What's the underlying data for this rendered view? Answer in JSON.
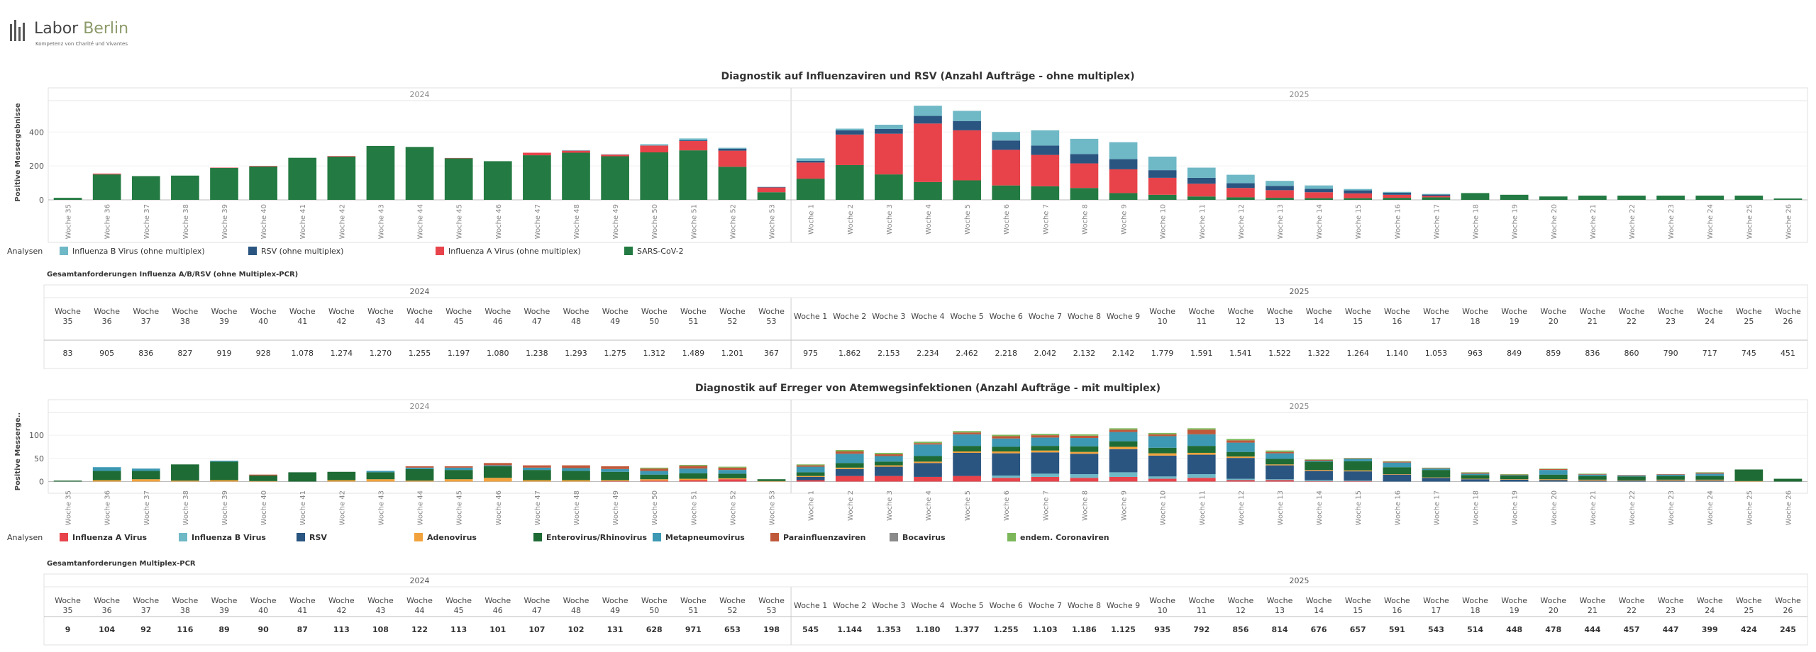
{
  "logo": {
    "name1": "Labor",
    "name2": "Berlin",
    "tagline": "Kompetenz von Charité und Vivantes"
  },
  "weeks": [
    "Woche 35",
    "Woche 36",
    "Woche 37",
    "Woche 38",
    "Woche 39",
    "Woche 40",
    "Woche 41",
    "Woche 42",
    "Woche 43",
    "Woche 44",
    "Woche 45",
    "Woche 46",
    "Woche 47",
    "Woche 48",
    "Woche 49",
    "Woche 50",
    "Woche 51",
    "Woche 52",
    "Woche 53",
    "Woche 1",
    "Woche 2",
    "Woche 3",
    "Woche 4",
    "Woche 5",
    "Woche 6",
    "Woche 7",
    "Woche 8",
    "Woche 9",
    "Woche 10",
    "Woche 11",
    "Woche 12",
    "Woche 13",
    "Woche 14",
    "Woche 15",
    "Woche 16",
    "Woche 17",
    "Woche 18",
    "Woche 19",
    "Woche 20",
    "Woche 21",
    "Woche 22",
    "Woche 23",
    "Woche 24",
    "Woche 25",
    "Woche 26"
  ],
  "years": [
    "2024",
    "2025"
  ],
  "legend_label": "Analysen",
  "colors": {
    "fluB": "#6fb8c6",
    "rsv": "#2a5581",
    "fluA": "#e8434a",
    "sars": "#237a42",
    "adeno": "#f2a23c",
    "entero": "#1e6b35",
    "meta": "#3c98b3",
    "para": "#c0583a",
    "boca": "#8a8a8a",
    "corona": "#7cb85a"
  },
  "chart_data": [
    {
      "type": "bar",
      "stacked": true,
      "title": "Diagnostik auf Influenzaviren und RSV (Anzahl Aufträge - ohne multiplex)",
      "ylabel": "Positive Messergebnisse",
      "ylim": [
        0,
        560
      ],
      "yticks": [
        0,
        200,
        400
      ],
      "series": [
        {
          "name": "SARS-CoV-2",
          "key": "sars",
          "values": [
            12,
            150,
            140,
            143,
            188,
            197,
            248,
            255,
            318,
            312,
            245,
            228,
            263,
            278,
            257,
            280,
            292,
            195,
            45,
            125,
            205,
            150,
            105,
            115,
            85,
            80,
            70,
            40,
            30,
            20,
            15,
            12,
            10,
            10,
            12,
            15,
            40,
            30,
            20,
            25,
            25,
            25,
            25,
            25,
            8
          ]
        },
        {
          "name": "Influenza A Virus (ohne multiplex)",
          "key": "fluA",
          "values": [
            0,
            5,
            0,
            0,
            2,
            3,
            0,
            3,
            0,
            0,
            2,
            0,
            15,
            12,
            10,
            40,
            55,
            95,
            28,
            95,
            180,
            240,
            345,
            295,
            210,
            185,
            145,
            140,
            100,
            75,
            55,
            45,
            35,
            28,
            18,
            8,
            0,
            0,
            0,
            0,
            0,
            0,
            0,
            0,
            0
          ]
        },
        {
          "name": "RSV (ohne multiplex)",
          "key": "rsv",
          "values": [
            0,
            0,
            0,
            0,
            0,
            0,
            0,
            0,
            0,
            0,
            0,
            0,
            0,
            0,
            0,
            0,
            5,
            12,
            2,
            10,
            25,
            28,
            45,
            55,
            55,
            55,
            55,
            60,
            45,
            35,
            28,
            25,
            20,
            18,
            12,
            8,
            0,
            0,
            0,
            0,
            0,
            0,
            0,
            0,
            0
          ]
        },
        {
          "name": "Influenza B Virus (ohne multiplex)",
          "key": "fluB",
          "values": [
            0,
            0,
            0,
            0,
            0,
            0,
            0,
            0,
            0,
            0,
            0,
            0,
            0,
            3,
            2,
            8,
            10,
            5,
            2,
            15,
            10,
            25,
            60,
            60,
            50,
            90,
            90,
            100,
            80,
            60,
            50,
            30,
            20,
            8,
            5,
            4,
            0,
            0,
            0,
            0,
            0,
            0,
            0,
            0,
            0
          ]
        }
      ]
    },
    {
      "type": "table",
      "title": "Gesamtanforderungen Influenza A/B/RSV (ohne Multiplex-PCR)",
      "values": [
        "83",
        "905",
        "836",
        "827",
        "919",
        "928",
        "1.078",
        "1.274",
        "1.270",
        "1.255",
        "1.197",
        "1.080",
        "1.238",
        "1.293",
        "1.275",
        "1.312",
        "1.489",
        "1.201",
        "367",
        "975",
        "1.862",
        "2.153",
        "2.234",
        "2.462",
        "2.218",
        "2.042",
        "2.132",
        "2.142",
        "1.779",
        "1.591",
        "1.541",
        "1.522",
        "1.322",
        "1.264",
        "1.140",
        "1.053",
        "963",
        "849",
        "859",
        "836",
        "860",
        "790",
        "717",
        "745",
        "451"
      ]
    },
    {
      "type": "bar",
      "stacked": true,
      "title": "Diagnostik auf Erreger von Atemwegsinfektionen (Anzahl Aufträge - mit multiplex)",
      "ylabel": "Positive Messerge..",
      "ylim": [
        -10,
        140
      ],
      "yticks": [
        0,
        50,
        100
      ],
      "series": [
        {
          "name": "Influenza A Virus",
          "key": "fluA",
          "values": [
            0,
            0,
            0,
            0,
            0,
            0,
            0,
            0,
            0,
            0,
            0,
            0,
            0,
            0,
            1,
            2,
            3,
            5,
            0,
            3,
            12,
            12,
            10,
            12,
            8,
            10,
            8,
            10,
            6,
            8,
            3,
            3,
            1,
            1,
            0,
            0,
            0,
            0,
            0,
            0,
            0,
            0,
            0,
            0,
            0
          ]
        },
        {
          "name": "Influenza B Virus",
          "key": "fluB",
          "values": [
            0,
            0,
            0,
            0,
            0,
            0,
            0,
            0,
            0,
            0,
            0,
            0,
            0,
            0,
            0,
            0,
            0,
            0,
            0,
            0,
            0,
            0,
            0,
            0,
            5,
            7,
            8,
            10,
            5,
            8,
            3,
            2,
            2,
            1,
            0,
            0,
            0,
            0,
            0,
            0,
            0,
            0,
            0,
            0,
            0
          ]
        },
        {
          "name": "RSV",
          "key": "rsv",
          "values": [
            0,
            0,
            0,
            0,
            0,
            0,
            0,
            0,
            0,
            0,
            0,
            0,
            0,
            0,
            0,
            0,
            0,
            0,
            0,
            7,
            15,
            20,
            30,
            50,
            48,
            46,
            44,
            50,
            45,
            42,
            45,
            30,
            20,
            20,
            15,
            8,
            5,
            4,
            3,
            2,
            2,
            2,
            2,
            0,
            0
          ]
        },
        {
          "name": "Adenovirus",
          "key": "adeno",
          "values": [
            0,
            3,
            5,
            2,
            3,
            1,
            0,
            3,
            5,
            2,
            5,
            8,
            3,
            3,
            2,
            3,
            3,
            2,
            1,
            2,
            3,
            3,
            3,
            3,
            4,
            4,
            4,
            5,
            5,
            4,
            3,
            2,
            2,
            2,
            1,
            1,
            1,
            1,
            2,
            2,
            1,
            2,
            2,
            1,
            0
          ]
        },
        {
          "name": "Enterovirus/Rhinovirus",
          "key": "entero",
          "values": [
            2,
            20,
            18,
            35,
            40,
            12,
            20,
            18,
            15,
            25,
            20,
            25,
            22,
            20,
            18,
            10,
            12,
            10,
            4,
            8,
            10,
            8,
            12,
            12,
            10,
            10,
            12,
            12,
            12,
            15,
            10,
            12,
            18,
            20,
            15,
            16,
            8,
            8,
            10,
            8,
            8,
            8,
            8,
            25,
            6
          ]
        },
        {
          "name": "Metapneumovirus",
          "key": "meta",
          "values": [
            0,
            8,
            5,
            0,
            2,
            0,
            0,
            0,
            3,
            3,
            5,
            2,
            5,
            6,
            6,
            8,
            10,
            8,
            0,
            12,
            20,
            12,
            25,
            25,
            18,
            18,
            18,
            20,
            25,
            25,
            20,
            12,
            2,
            5,
            10,
            3,
            3,
            1,
            10,
            3,
            2,
            3,
            5,
            0,
            0
          ]
        },
        {
          "name": "Parainfluenzaviren",
          "key": "para",
          "values": [
            0,
            0,
            0,
            0,
            0,
            2,
            0,
            0,
            0,
            3,
            3,
            5,
            5,
            6,
            6,
            5,
            6,
            5,
            0,
            3,
            5,
            4,
            3,
            4,
            5,
            5,
            5,
            5,
            4,
            10,
            5,
            3,
            2,
            1,
            2,
            1,
            2,
            1,
            2,
            1,
            1,
            1,
            2,
            0,
            0
          ]
        },
        {
          "name": "Bocavirus",
          "key": "boca",
          "values": [
            0,
            0,
            0,
            0,
            0,
            0,
            0,
            0,
            0,
            0,
            0,
            0,
            0,
            0,
            0,
            0,
            0,
            0,
            0,
            0,
            0,
            0,
            0,
            0,
            0,
            0,
            0,
            0,
            0,
            0,
            0,
            0,
            0,
            0,
            0,
            0,
            0,
            0,
            0,
            0,
            0,
            0,
            0,
            0,
            0
          ]
        },
        {
          "name": "endem. Coronaviren",
          "key": "corona",
          "values": [
            0,
            0,
            0,
            0,
            0,
            0,
            0,
            0,
            0,
            0,
            0,
            0,
            0,
            0,
            0,
            2,
            2,
            2,
            0,
            2,
            3,
            3,
            3,
            3,
            3,
            3,
            3,
            3,
            3,
            3,
            3,
            3,
            1,
            1,
            1,
            1,
            1,
            1,
            1,
            1,
            0,
            0,
            1,
            0,
            0
          ]
        }
      ]
    },
    {
      "type": "table",
      "title": "Gesamtanforderungen Multiplex-PCR",
      "values": [
        "9",
        "104",
        "92",
        "116",
        "89",
        "90",
        "87",
        "113",
        "108",
        "122",
        "113",
        "101",
        "107",
        "102",
        "131",
        "628",
        "971",
        "653",
        "198",
        "545",
        "1.144",
        "1.353",
        "1.180",
        "1.377",
        "1.255",
        "1.103",
        "1.186",
        "1.125",
        "935",
        "792",
        "856",
        "814",
        "676",
        "657",
        "591",
        "543",
        "514",
        "448",
        "478",
        "444",
        "457",
        "447",
        "399",
        "424",
        "245"
      ]
    }
  ]
}
